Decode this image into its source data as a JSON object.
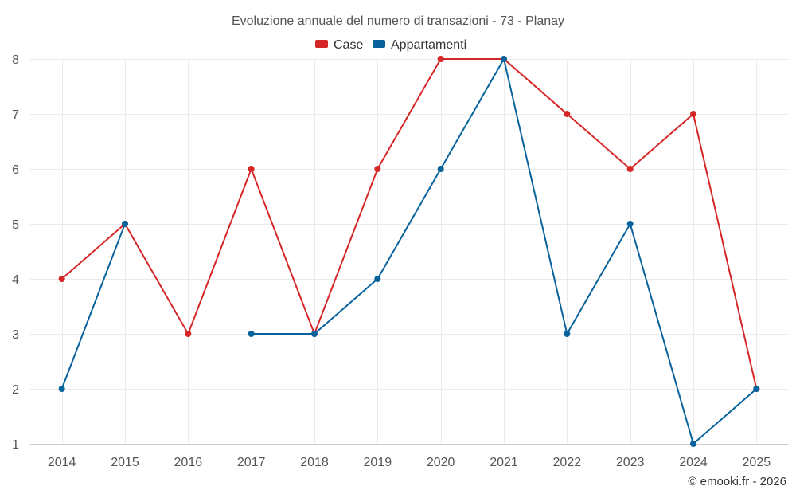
{
  "chart_data": {
    "type": "line",
    "title": "Evoluzione annuale del numero di transazioni - 73 - Planay",
    "categories": [
      "2014",
      "2015",
      "2016",
      "2017",
      "2018",
      "2019",
      "2020",
      "2021",
      "2022",
      "2023",
      "2024",
      "2025"
    ],
    "series": [
      {
        "name": "Case",
        "color": "#d62728",
        "values": [
          4,
          5,
          3,
          6,
          3,
          6,
          8,
          8,
          7,
          6,
          7,
          2
        ]
      },
      {
        "name": "Appartamenti",
        "color": "#08639c",
        "values": [
          2,
          5,
          null,
          3,
          3,
          4,
          6,
          8,
          3,
          5,
          1,
          2
        ]
      }
    ],
    "ylim": [
      1,
      8
    ],
    "yticks": [
      "1",
      "2",
      "3",
      "4",
      "5",
      "6",
      "7",
      "8"
    ],
    "grid": true,
    "legend_position": "top-center"
  },
  "credit": "© emooki.fr - 2026"
}
